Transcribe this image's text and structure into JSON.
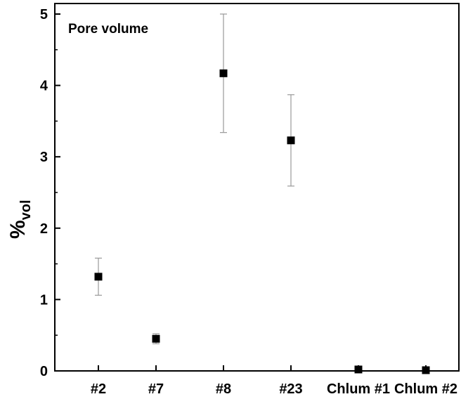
{
  "chart_data": {
    "type": "scatter",
    "categories": [
      "#2",
      "#7",
      "#8",
      "#23",
      "Chlum #1",
      "Chlum #2"
    ],
    "values": [
      1.32,
      0.45,
      4.17,
      3.23,
      0.02,
      0.01
    ],
    "errors": [
      0.26,
      0.07,
      0.83,
      0.64,
      0.0,
      0.0
    ],
    "annotation": "Pore volume",
    "ylabel": "%",
    "ylabel_subscript": "vol",
    "xlabel": "",
    "ylim": [
      0,
      5
    ],
    "yticks": [
      "0",
      "1",
      "2",
      "3",
      "4",
      "5"
    ],
    "grid": false,
    "marker": "filled-square",
    "colors": {
      "marker": "#000000",
      "errorbar": "#999999",
      "axis": "#000000"
    }
  }
}
